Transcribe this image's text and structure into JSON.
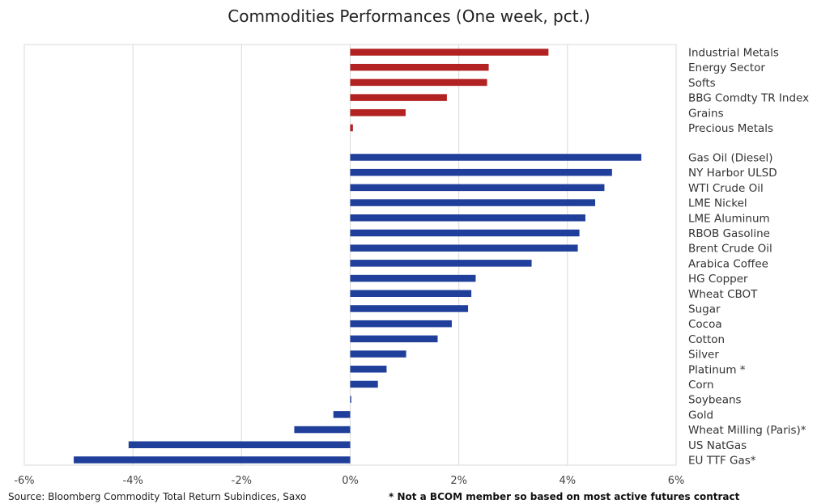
{
  "footer": {
    "source": "Source: Bloomberg Commodity Total Return Subindices, Saxo",
    "note": "* Not a BCOM member so based on most active futures contract"
  },
  "chart_data": {
    "type": "bar",
    "orientation": "horizontal",
    "title": "Commodities Performances (One week, pct.)",
    "xlabel": "",
    "ylabel": "",
    "xlim": [
      -6,
      6
    ],
    "x_ticks": [
      "-6%",
      "-4%",
      "-2%",
      "0%",
      "2%",
      "4%",
      "6%"
    ],
    "grid": true,
    "legend": "none",
    "colors": {
      "sectors": "#b22222",
      "constituents": "#1f3f9a"
    },
    "series": [
      {
        "group": "sectors",
        "categories": [
          "Industrial Metals",
          "Energy Sector",
          "Softs",
          "BBG Comdty TR Index",
          "Grains",
          "Precious Metals"
        ],
        "values": [
          3.65,
          2.55,
          2.52,
          1.78,
          1.02,
          0.05
        ]
      },
      {
        "group": "constituents",
        "categories": [
          "Gas Oil (Diesel)",
          "NY Harbor ULSD",
          "WTI Crude Oil",
          "LME Nickel",
          "LME Aluminum",
          "RBOB Gasoline",
          "Brent Crude Oil",
          "Arabica Coffee",
          "HG Copper",
          "Wheat CBOT",
          "Sugar",
          "Cocoa",
          "Cotton",
          "Silver",
          "Platinum *",
          "Corn",
          "Soybeans",
          "Gold",
          "Wheat Milling (Paris)*",
          "US NatGas",
          "EU TTF Gas*"
        ],
        "values": [
          5.36,
          4.82,
          4.68,
          4.51,
          4.33,
          4.22,
          4.19,
          3.34,
          2.31,
          2.23,
          2.17,
          1.87,
          1.61,
          1.03,
          0.67,
          0.51,
          0.02,
          -0.31,
          -1.03,
          -4.08,
          -5.09
        ]
      }
    ]
  }
}
